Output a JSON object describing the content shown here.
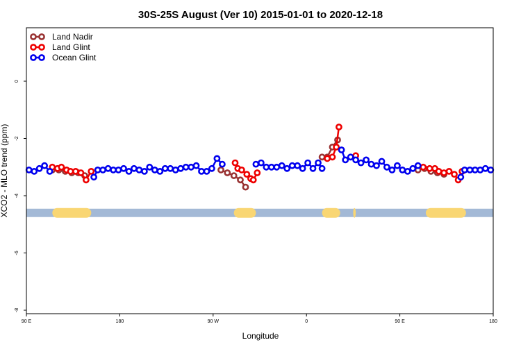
{
  "chart_data": {
    "type": "line",
    "title": "30S-25S August (Ver 10)   2015-01-01 to 2020-12-18",
    "xlabel": "Longitude",
    "ylabel": "XCO2 - MLO trend (ppm)",
    "xlim": [
      0,
      360
    ],
    "ylim": [
      -8,
      2
    ],
    "x_ticks": [
      {
        "value": 0,
        "label": "90 E"
      },
      {
        "value": 72,
        "label": "180"
      },
      {
        "value": 144,
        "label": "90 W"
      },
      {
        "value": 216,
        "label": "0"
      },
      {
        "value": 288,
        "label": "90 E"
      },
      {
        "value": 360,
        "label": "180"
      }
    ],
    "y_ticks": [
      0,
      -2,
      -4,
      -6,
      -8
    ],
    "grid": false,
    "legend_position": "top-left",
    "series": [
      {
        "name": "Land Nadir",
        "color": "#993333",
        "segments": [
          [
            [
              20,
              -3.1
            ],
            [
              25,
              -3.1
            ],
            [
              30,
              -3.15
            ],
            [
              35,
              -3.2
            ],
            [
              40,
              -3.2
            ],
            [
              45,
              -3.3
            ]
          ],
          [
            [
              150,
              -3.1
            ],
            [
              155,
              -3.2
            ],
            [
              160,
              -3.3
            ],
            [
              165,
              -3.45
            ],
            [
              169,
              -3.7
            ]
          ],
          [
            [
              228,
              -2.65
            ],
            [
              232,
              -2.65
            ],
            [
              236,
              -2.3
            ],
            [
              240,
              -2.05
            ]
          ],
          [
            [
              302,
              -3.1
            ],
            [
              307,
              -3.05
            ],
            [
              312,
              -3.15
            ],
            [
              317,
              -3.2
            ],
            [
              322,
              -3.25
            ]
          ]
        ]
      },
      {
        "name": "Land Glint",
        "color": "#ee0000",
        "segments": [
          [
            [
              20,
              -3.0
            ],
            [
              24,
              -3.05
            ],
            [
              27,
              -3.0
            ],
            [
              31,
              -3.1
            ],
            [
              34,
              -3.15
            ],
            [
              38,
              -3.15
            ],
            [
              42,
              -3.2
            ],
            [
              46,
              -3.45
            ],
            [
              50,
              -3.15
            ]
          ],
          [
            [
              161,
              -2.85
            ],
            [
              163,
              -3.05
            ],
            [
              166,
              -3.1
            ],
            [
              170,
              -3.25
            ],
            [
              173,
              -3.4
            ],
            [
              175,
              -3.45
            ],
            [
              178,
              -3.2
            ]
          ],
          [
            [
              232,
              -2.7
            ],
            [
              236,
              -2.65
            ],
            [
              239,
              -2.3
            ],
            [
              241,
              -1.6
            ]
          ],
          [
            [
              254,
              -2.6
            ]
          ],
          [
            [
              306,
              -3.0
            ],
            [
              311,
              -3.05
            ],
            [
              315,
              -3.05
            ],
            [
              318,
              -3.15
            ],
            [
              322,
              -3.2
            ],
            [
              326,
              -3.15
            ],
            [
              330,
              -3.25
            ],
            [
              333,
              -3.45
            ],
            [
              336,
              -3.15
            ]
          ]
        ]
      },
      {
        "name": "Ocean Glint",
        "color": "#0000ee",
        "segments": [
          [
            [
              2,
              -3.1
            ],
            [
              6,
              -3.15
            ],
            [
              10,
              -3.05
            ],
            [
              14,
              -2.95
            ],
            [
              18,
              -3.15
            ]
          ],
          [
            [
              52,
              -3.35
            ],
            [
              55,
              -3.1
            ],
            [
              59,
              -3.1
            ],
            [
              63,
              -3.05
            ],
            [
              67,
              -3.1
            ],
            [
              71,
              -3.1
            ],
            [
              75,
              -3.05
            ],
            [
              79,
              -3.15
            ],
            [
              83,
              -3.05
            ],
            [
              87,
              -3.1
            ],
            [
              91,
              -3.15
            ],
            [
              95,
              -3.0
            ],
            [
              99,
              -3.1
            ],
            [
              103,
              -3.15
            ],
            [
              107,
              -3.05
            ],
            [
              111,
              -3.05
            ],
            [
              115,
              -3.1
            ],
            [
              119,
              -3.05
            ],
            [
              123,
              -3.0
            ],
            [
              127,
              -3.0
            ],
            [
              131,
              -2.95
            ],
            [
              135,
              -3.15
            ],
            [
              139,
              -3.15
            ],
            [
              143,
              -3.05
            ],
            [
              147,
              -2.7
            ],
            [
              151,
              -2.9
            ]
          ],
          [
            [
              177,
              -2.9
            ],
            [
              181,
              -2.85
            ],
            [
              185,
              -3.0
            ],
            [
              189,
              -3.0
            ],
            [
              193,
              -3.0
            ],
            [
              197,
              -2.95
            ],
            [
              201,
              -3.05
            ],
            [
              205,
              -2.95
            ],
            [
              209,
              -2.95
            ],
            [
              213,
              -3.05
            ],
            [
              217,
              -2.85
            ],
            [
              221,
              -3.05
            ],
            [
              225,
              -2.85
            ],
            [
              228,
              -3.05
            ]
          ],
          [
            [
              243,
              -2.4
            ],
            [
              246,
              -2.75
            ],
            [
              250,
              -2.65
            ],
            [
              254,
              -2.75
            ],
            [
              258,
              -2.85
            ],
            [
              262,
              -2.75
            ],
            [
              266,
              -2.9
            ],
            [
              270,
              -2.95
            ],
            [
              274,
              -2.8
            ],
            [
              278,
              -3.0
            ],
            [
              282,
              -3.1
            ],
            [
              286,
              -2.95
            ],
            [
              290,
              -3.1
            ],
            [
              294,
              -3.15
            ],
            [
              298,
              -3.05
            ],
            [
              302,
              -2.95
            ]
          ],
          [
            [
              335,
              -3.35
            ],
            [
              338,
              -3.1
            ],
            [
              342,
              -3.1
            ],
            [
              346,
              -3.1
            ],
            [
              350,
              -3.1
            ],
            [
              354,
              -3.05
            ],
            [
              358,
              -3.1
            ]
          ]
        ]
      }
    ],
    "land_band": {
      "y": -4.6,
      "ocean_color": "#a3b9d6",
      "land_color": "#f9d673",
      "land_ranges": [
        [
          20,
          50
        ],
        [
          160,
          177
        ],
        [
          228,
          242
        ],
        [
          252,
          254
        ],
        [
          308,
          339
        ]
      ]
    }
  }
}
